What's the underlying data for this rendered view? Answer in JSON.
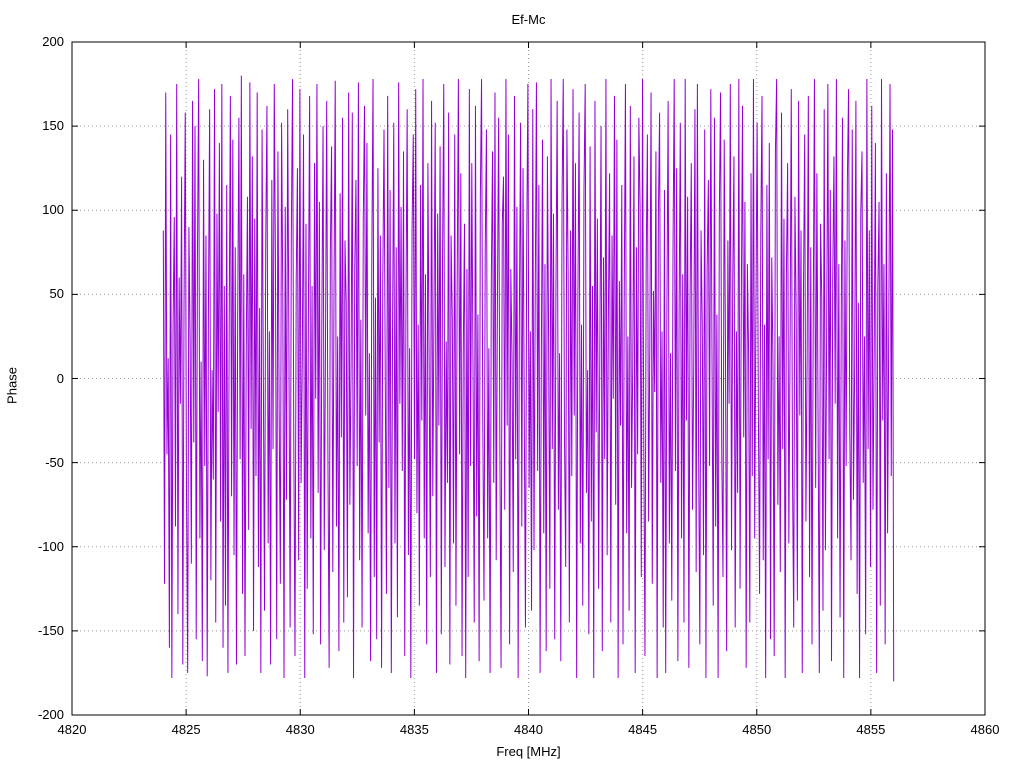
{
  "figure": {
    "title": "Ef-Mc",
    "xlabel": "Freq [MHz]",
    "ylabel": "Phase"
  },
  "chart_data": {
    "type": "line",
    "title": "Ef-Mc",
    "xlabel": "Freq [MHz]",
    "ylabel": "Phase",
    "xlim": [
      4820,
      4860
    ],
    "ylim": [
      -200,
      200
    ],
    "xticks": [
      4820,
      4825,
      4830,
      4835,
      4840,
      4845,
      4850,
      4855,
      4860
    ],
    "yticks": [
      -200,
      -150,
      -100,
      -50,
      0,
      50,
      100,
      150,
      200
    ],
    "grid": true,
    "legend": "none",
    "line_color": "#9400d3",
    "grid_color": "#9c9c9c",
    "axis_color": "#000000",
    "x_start": 4824.0,
    "x_end": 4856.0,
    "values": [
      88,
      -122,
      170,
      -45,
      12,
      -160,
      145,
      -178,
      30,
      96,
      -88,
      175,
      -140,
      60,
      -15,
      120,
      -170,
      44,
      158,
      -66,
      -175,
      90,
      23,
      -110,
      165,
      -38,
      150,
      -155,
      72,
      178,
      -95,
      10,
      -168,
      130,
      -52,
      85,
      -177,
      40,
      160,
      -120,
      5,
      -60,
      172,
      -145,
      98,
      -20,
      140,
      -85,
      175,
      -160,
      55,
      -135,
      115,
      -175,
      25,
      168,
      -70,
      142,
      -105,
      78,
      -170,
      35,
      155,
      -48,
      180,
      -128,
      62,
      -165,
      15,
      108,
      -90,
      176,
      -30,
      132,
      -150,
      95,
      -58,
      170,
      -112,
      42,
      -175,
      148,
      8,
      -138,
      80,
      162,
      -98,
      28,
      -170,
      118,
      -42,
      175,
      65,
      -155,
      135,
      -18,
      -122,
      152,
      48,
      -178,
      102,
      -72,
      160,
      22,
      -148,
      86,
      178,
      -35,
      -165,
      58,
      125,
      -108,
      172,
      -62,
      12,
      145,
      -178,
      92,
      -125,
      38,
      168,
      -95,
      55,
      -152,
      128,
      -12,
      175,
      -68,
      105,
      -158,
      32,
      150,
      -102,
      18,
      165,
      -45,
      -172,
      75,
      138,
      -115,
      52,
      177,
      -88,
      25,
      -162,
      110,
      -35,
      155,
      -145,
      82,
      45,
      -130,
      170,
      -75,
      8,
      158,
      -178,
      65,
      118,
      -52,
      176,
      -108,
      35,
      -148,
      95,
      162,
      -22,
      140,
      -92,
      15,
      -168,
      72,
      178,
      -118,
      48,
      -155,
      125,
      -38,
      85,
      -172,
      58,
      148,
      5,
      -128,
      168,
      -65,
      112,
      -175,
      28,
      152,
      -98,
      78,
      -142,
      176,
      -15,
      102,
      -55,
      135,
      -165,
      42,
      160,
      -105,
      18,
      -178,
      88,
      145,
      -48,
      172,
      -80,
      32,
      -135,
      115,
      -25,
      178,
      -95,
      62,
      -158,
      128,
      8,
      -118,
      165,
      -70,
      42,
      152,
      -175,
      98,
      -28,
      138,
      -152,
      70,
      175,
      -112,
      22,
      -62,
      158,
      -170,
      85,
      35,
      -98,
      145,
      -135,
      55,
      178,
      -45,
      122,
      -165,
      15,
      92,
      -178,
      65,
      -118,
      172,
      -52,
      128,
      5,
      -145,
      162,
      -82,
      38,
      -168,
      108,
      178,
      -25,
      -132,
      75,
      148,
      -95,
      18,
      -175,
      58,
      135,
      -62,
      170,
      -108,
      45,
      155,
      -38,
      -172,
      92,
      120,
      -78,
      178,
      -28,
      145,
      -158,
      65,
      12,
      -115,
      168,
      -48,
      102,
      -178,
      35,
      152,
      -88,
      125,
      -18,
      -148,
      78,
      175,
      -65,
      28,
      -138,
      160,
      -102,
      48,
      176,
      -55,
      115,
      -175,
      8,
      142,
      -92,
      68,
      -162,
      132,
      22,
      -125,
      178,
      -42,
      98,
      -155,
      52,
      165,
      -78,
      15,
      -168,
      105,
      178,
      -35,
      -112,
      148,
      62,
      -145,
      88,
      -58,
      172,
      -22,
      128,
      -178,
      45,
      158,
      -98,
      32,
      -135,
      112,
      175,
      -68,
      5,
      -152,
      138,
      -85,
      55,
      -178,
      165,
      -32,
      95,
      -125,
      18,
      150,
      -162,
      72,
      -48,
      178,
      -105,
      38,
      122,
      -145,
      85,
      -12,
      168,
      -75,
      142,
      -178,
      58,
      -28,
      115,
      -158,
      48,
      175,
      -92,
      25,
      -138,
      162,
      -65,
      8,
      132,
      -175,
      78,
      -45,
      155,
      102,
      -118,
      178,
      -35,
      -165,
      68,
      145,
      -85,
      22,
      170,
      -122,
      52,
      -8,
      135,
      -178,
      95,
      158,
      -62,
      28,
      -148,
      112,
      -175,
      42,
      165,
      -98,
      15,
      -132,
      75,
      178,
      -55,
      125,
      -168,
      38,
      152,
      -95,
      62,
      -145,
      178,
      -25,
      108,
      -172,
      48,
      128,
      -78,
      5,
      160,
      -115,
      175,
      -42,
      -158,
      88,
      32,
      -105,
      148,
      -178,
      65,
      118,
      -52,
      172,
      12,
      -135,
      155,
      -88,
      38,
      -178,
      98,
      170,
      -45,
      -118,
      142,
      22,
      -162,
      82,
      -15,
      175,
      -102,
      58,
      132,
      -148,
      28,
      -68,
      178,
      -125,
      45,
      162,
      -35,
      105,
      -172,
      68,
      15,
      -145,
      122,
      -58,
      178,
      -95,
      42,
      152,
      -18,
      -128,
      85,
      168,
      -108,
      32,
      -178,
      115,
      -48,
      140,
      -155,
      72,
      8,
      -165,
      135,
      178,
      -75,
      25,
      -115,
      158,
      -42,
      95,
      -178,
      62,
      128,
      -98,
      18,
      172,
      -55,
      -148,
      108,
      38,
      -132,
      165,
      -22,
      88,
      -175,
      52,
      145,
      -85,
      12,
      168,
      -118,
      78,
      -158,
      35,
      178,
      -65,
      122,
      -28,
      -175,
      92,
      48,
      -138,
      160,
      -102,
      22,
      175,
      -48,
      112,
      -168,
      58,
      132,
      -15,
      178,
      -95,
      68,
      -142,
      38,
      155,
      -178,
      82,
      -52,
      118,
      172,
      -32,
      -108,
      148,
      -72,
      8,
      165,
      -128,
      45,
      -178,
      98,
      135,
      -62,
      25,
      -152,
      178,
      -42,
      88,
      -112,
      162,
      -78,
      15,
      140,
      -175,
      55,
      105,
      -135,
      178,
      -25,
      68,
      -158,
      122,
      -92,
      35,
      175,
      -58,
      148,
      -180
    ]
  }
}
